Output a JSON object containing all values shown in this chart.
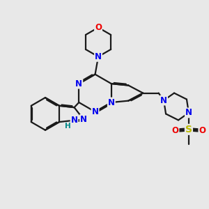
{
  "bg_color": "#e8e8e8",
  "bond_color": "#1a1a1a",
  "bond_width": 1.6,
  "dbo": 0.06,
  "atom_colors": {
    "N": "#0000ee",
    "O": "#ee0000",
    "S": "#bbbb00",
    "H": "#008888",
    "C": "#1a1a1a"
  },
  "fs": 8.5
}
